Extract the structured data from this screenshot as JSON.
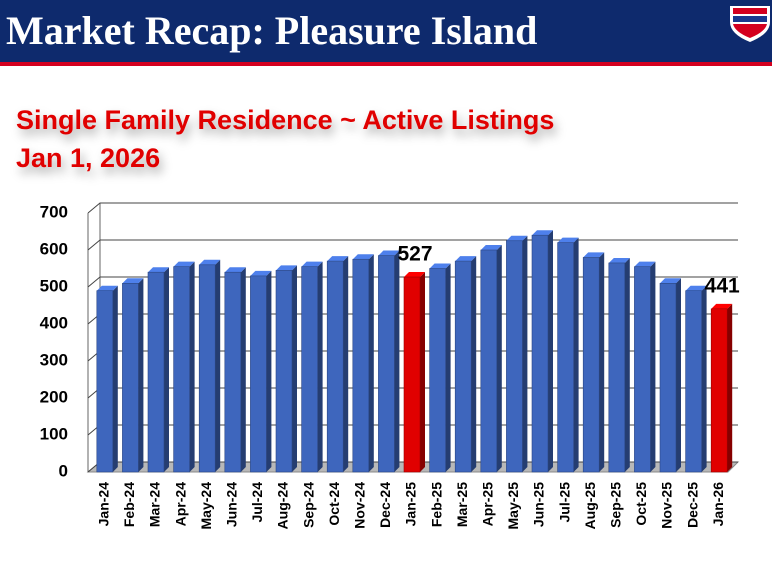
{
  "header": {
    "title": "Market Recap: Pleasure Island"
  },
  "chart_data": {
    "type": "bar3d",
    "title": "Single Family Residence ~ Active Listings",
    "subtitle": "Jan 1, 2026",
    "categories": [
      "Jan-24",
      "Feb-24",
      "Mar-24",
      "Apr-24",
      "May-24",
      "Jun-24",
      "Jul-24",
      "Aug-24",
      "Sep-24",
      "Oct-24",
      "Nov-24",
      "Dec-24",
      "Jan-25",
      "Feb-25",
      "Mar-25",
      "Apr-25",
      "May-25",
      "Jun-25",
      "Jul-25",
      "Aug-25",
      "Sep-25",
      "Oct-25",
      "Nov-25",
      "Dec-25",
      "Jan-26"
    ],
    "values": [
      490,
      510,
      540,
      555,
      560,
      540,
      530,
      545,
      555,
      570,
      575,
      585,
      527,
      550,
      570,
      600,
      625,
      640,
      620,
      580,
      565,
      555,
      510,
      490,
      441
    ],
    "value_labels": [
      null,
      null,
      null,
      null,
      null,
      null,
      null,
      null,
      null,
      null,
      null,
      null,
      "527",
      null,
      null,
      null,
      null,
      null,
      null,
      null,
      null,
      null,
      null,
      null,
      "441"
    ],
    "colors": [
      "#3e66bd",
      "#3e66bd",
      "#3e66bd",
      "#3e66bd",
      "#3e66bd",
      "#3e66bd",
      "#3e66bd",
      "#3e66bd",
      "#3e66bd",
      "#3e66bd",
      "#3e66bd",
      "#3e66bd",
      "#e00000",
      "#3e66bd",
      "#3e66bd",
      "#3e66bd",
      "#3e66bd",
      "#3e66bd",
      "#3e66bd",
      "#3e66bd",
      "#3e66bd",
      "#3e66bd",
      "#3e66bd",
      "#3e66bd",
      "#e00000"
    ],
    "ylim": [
      0,
      700
    ],
    "yticks": [
      0,
      100,
      200,
      300,
      400,
      500,
      600,
      700
    ],
    "grid": true
  }
}
